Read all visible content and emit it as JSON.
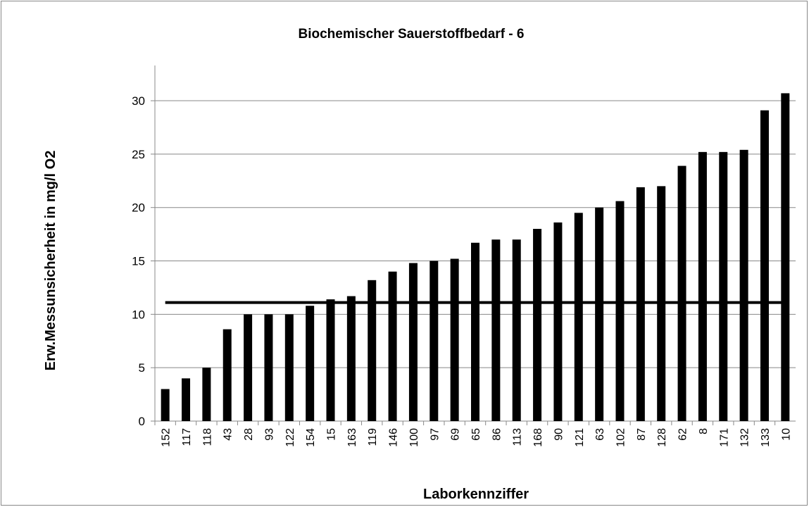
{
  "chart_data": {
    "type": "bar",
    "title": "Biochemischer Sauerstoffbedarf - 6",
    "x_label": "Laborkennziffer",
    "y_label": "Erw.Messunsicherheit in mg/l O2",
    "categories": [
      "152",
      "117",
      "118",
      "43",
      "28",
      "93",
      "122",
      "154",
      "15",
      "163",
      "119",
      "146",
      "100",
      "97",
      "69",
      "65",
      "86",
      "113",
      "168",
      "90",
      "121",
      "63",
      "102",
      "87",
      "128",
      "62",
      "8",
      "171",
      "132",
      "133",
      "10"
    ],
    "values": [
      3.0,
      4.0,
      5.0,
      8.6,
      10.0,
      10.0,
      10.0,
      10.8,
      11.4,
      11.7,
      13.2,
      14.0,
      14.8,
      15.0,
      15.2,
      16.7,
      17.0,
      17.0,
      18.0,
      18.6,
      19.5,
      20.0,
      20.6,
      21.9,
      22.0,
      23.9,
      25.2,
      25.2,
      25.4,
      29.1,
      30.7
    ],
    "color": "#000000",
    "reference_line": {
      "value": 11.1,
      "color": "#000000"
    },
    "ylim": [
      0,
      33.3
    ],
    "yticks": [
      0,
      5,
      10,
      15,
      20,
      25,
      30
    ],
    "grid": true
  }
}
